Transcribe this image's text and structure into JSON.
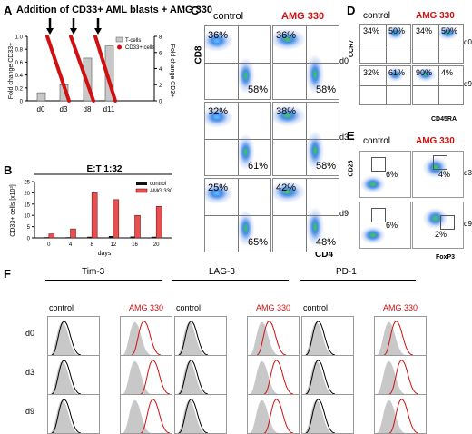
{
  "panel_labels": {
    "A": "A",
    "B": "B",
    "C": "C",
    "D": "D",
    "E": "E",
    "F": "F"
  },
  "panelA": {
    "title": "Addition of CD33+ AML blasts + AMG 330",
    "ylabel_left": "Fold change CD33+",
    "ylabel_right": "Fold change CD3+",
    "legend": [
      "T-cells",
      "CD33+ cells"
    ],
    "xticks": [
      "d0",
      "d3",
      "d8",
      "d11"
    ],
    "left_ticks": [
      "0",
      "0.2",
      "0.4",
      "0.6",
      "0.8",
      "1.0"
    ],
    "right_ticks": [
      "0",
      "2",
      "4",
      "6",
      "8"
    ]
  },
  "panelB": {
    "title": "E:T 1:32",
    "legend": [
      "control",
      "AMG 330"
    ]
  },
  "panelC": {
    "header_control": "control",
    "header_amg": "AMG 330",
    "ylabel": "CD8",
    "xlabel": "CD4",
    "rows": [
      {
        "day": "d0",
        "c_ul": "36%",
        "c_lr": "58%",
        "a_ul": "36%",
        "a_lr": "58%"
      },
      {
        "day": "d3",
        "c_ul": "32%",
        "c_lr": "61%",
        "a_ul": "38%",
        "a_lr": "58%"
      },
      {
        "day": "d9",
        "c_ul": "25%",
        "c_lr": "65%",
        "a_ul": "42%",
        "a_lr": "48%"
      }
    ]
  },
  "panelD": {
    "header_control": "control",
    "header_amg": "AMG 330",
    "ylabel": "CCR7",
    "xlabel": "CD45RA",
    "rows": [
      {
        "day": "d0",
        "c1": "34%",
        "c2": "50%",
        "a1": "34%",
        "a2": "50%"
      },
      {
        "day": "d9",
        "c1": "32%",
        "c2": "61%",
        "a1": "90%",
        "a2": "4%"
      }
    ]
  },
  "panelE": {
    "header_control": "control",
    "header_amg": "AMG 330",
    "ylabel": "CD25",
    "xlabel": "FoxP3",
    "rows": [
      {
        "day": "d3",
        "c": "6%",
        "a": "4%"
      },
      {
        "day": "d9",
        "c": "6%",
        "a": "2%"
      }
    ]
  },
  "panelF": {
    "markers": [
      "Tim-3",
      "LAG-3",
      "PD-1"
    ],
    "control": "control",
    "amg": "AMG 330",
    "days": [
      "d0",
      "d3",
      "d9"
    ]
  },
  "colors": {
    "red": "#d01010",
    "bar_gray": "#c8c8c8",
    "dark": "#000000"
  },
  "chart_data": [
    {
      "type": "bar",
      "title": "Addition of CD33+ AML blasts + AMG 330",
      "categories": [
        "d0",
        "d3",
        "d8",
        "d11"
      ],
      "series": [
        {
          "name": "T-cells",
          "axis": "right",
          "values": [
            1,
            2,
            5.3,
            6.8
          ]
        },
        {
          "name": "CD33+ cells",
          "type": "line",
          "axis": "left",
          "segments": [
            [
              1.0,
              0
            ],
            [
              1.0,
              0
            ],
            [
              1.0,
              0
            ]
          ]
        }
      ],
      "ylabel": "Fold change CD33+",
      "y2label": "Fold change CD3+",
      "ylim": [
        0,
        1.0
      ],
      "y2lim": [
        0,
        8
      ]
    },
    {
      "type": "bar",
      "title": "E:T 1:32",
      "categories": [
        "0",
        "4",
        "8",
        "12",
        "16",
        "20"
      ],
      "series": [
        {
          "name": "control",
          "values": [
            0.3,
            0.3,
            0.5,
            0.8,
            0.6,
            0.5
          ]
        },
        {
          "name": "AMG 330",
          "values": [
            1.8,
            4,
            20,
            17,
            10,
            14
          ]
        }
      ],
      "ylabel": "CD33+ cells [x10³]",
      "xlabel": "days",
      "yticks": [
        "0",
        "5",
        "10",
        "15",
        "20",
        "25"
      ],
      "ylim": [
        0,
        25
      ]
    }
  ]
}
